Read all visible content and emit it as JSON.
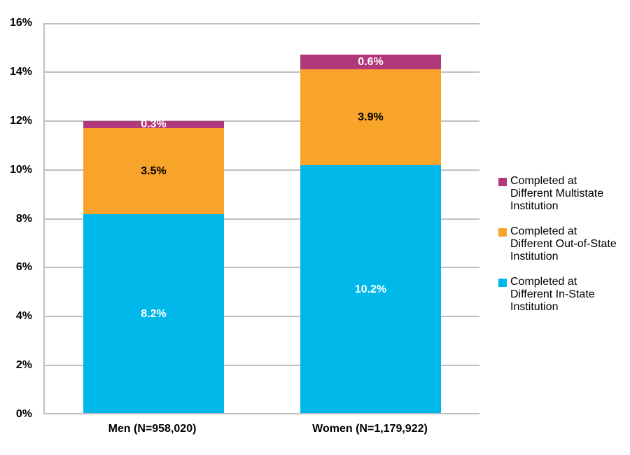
{
  "chart_data": {
    "type": "bar",
    "stacked": true,
    "title": "",
    "xlabel": "",
    "ylabel": "",
    "categories": [
      "Men (N=958,020)",
      "Women (N=1,179,922)"
    ],
    "category_keys": [
      "men",
      "women"
    ],
    "series": [
      {
        "key": "in-state",
        "name": "Completed at Different In-State Institution",
        "values": [
          8.2,
          10.2
        ],
        "color": "#00B7EA",
        "label_color": "#FFFFFF"
      },
      {
        "key": "out-of-state",
        "name": "Completed at Different Out-of-State Institution",
        "values": [
          3.5,
          3.9
        ],
        "color": "#F8A42B",
        "label_color": "#000000"
      },
      {
        "key": "multistate",
        "name": "Completed at Different Multistate Institution",
        "values": [
          0.3,
          0.6
        ],
        "color": "#B1397B",
        "label_color": "#FFFFFF"
      }
    ],
    "data_label_format": "{value}%",
    "ylim": [
      0,
      16
    ],
    "ytick_step": 2,
    "ytick_labels": [
      "0%",
      "2%",
      "4%",
      "6%",
      "8%",
      "10%",
      "12%",
      "14%",
      "16%"
    ],
    "grid": true,
    "gridline_color": "#BFBFBF",
    "axis_text_color": "#000000",
    "legend_position": "right",
    "legend": [
      {
        "key": "multistate",
        "color": "#B1397B",
        "label": "Completed at\nDifferent Multistate\nInstitution"
      },
      {
        "key": "out-of-state",
        "color": "#F8A42B",
        "label": "Completed at\nDifferent Out-of-State\nInstitution"
      },
      {
        "key": "in-state",
        "color": "#00B7EA",
        "label": "Completed at\nDifferent In-State\nInstitution"
      }
    ]
  }
}
